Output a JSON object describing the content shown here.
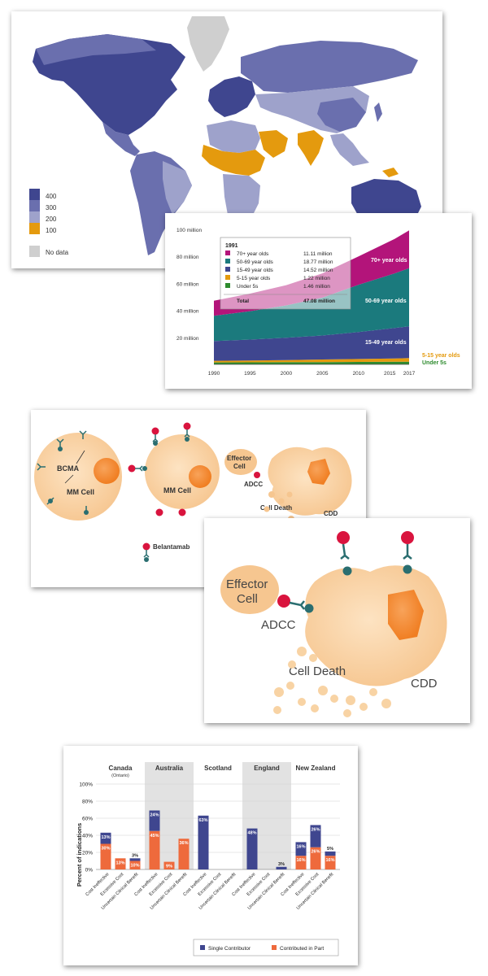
{
  "map": {
    "legend": [
      {
        "label": "400",
        "color": "#3f468f"
      },
      {
        "label": "300",
        "color": "#6a6fae"
      },
      {
        "label": "200",
        "color": "#9ea2cb"
      },
      {
        "label": "100",
        "color": "#e49a0e"
      },
      {
        "label": "No data",
        "color": "#cfcfcf"
      }
    ]
  },
  "area_chart": {
    "type": "area",
    "x": [
      1990,
      1995,
      2000,
      2005,
      2010,
      2015,
      2017
    ],
    "x_tick_labels": [
      "1990",
      "1995",
      "2000",
      "2005",
      "2010",
      "2015",
      "2017"
    ],
    "y_tick_labels": [
      "20 million",
      "40 million",
      "60 million",
      "80 million",
      "100 million"
    ],
    "ylim": [
      0,
      100
    ],
    "series": [
      {
        "name": "Under 5s",
        "color": "#2e8b2e",
        "values": [
          1.46,
          1.5,
          1.6,
          1.7,
          1.8,
          1.9,
          2.0
        ]
      },
      {
        "name": "5-15 year olds",
        "color": "#e49a0e",
        "values": [
          1.22,
          1.4,
          1.6,
          1.9,
          2.2,
          2.5,
          2.7
        ]
      },
      {
        "name": "15-49 year olds",
        "color": "#3f468f",
        "values": [
          14.52,
          15.5,
          16.5,
          17.8,
          20.0,
          22.5,
          23.5
        ]
      },
      {
        "name": "50-69 year olds",
        "color": "#1b7a7d",
        "values": [
          18.77,
          21.0,
          24.0,
          28.0,
          35.0,
          40.5,
          43.0
        ]
      },
      {
        "name": "70+ year olds",
        "color": "#b3147a",
        "values": [
          11.11,
          13.0,
          15.0,
          18.0,
          21.0,
          25.5,
          28.0
        ]
      }
    ],
    "inset": {
      "year": "1991",
      "rows": [
        {
          "label": "70+ year olds",
          "value": "11.11 million",
          "color": "#b3147a"
        },
        {
          "label": "50-69 year olds",
          "value": "18.77 million",
          "color": "#1b7a7d"
        },
        {
          "label": "15-49 year olds",
          "value": "14.52 million",
          "color": "#3f468f"
        },
        {
          "label": "5-15 year olds",
          "value": "1.22 million",
          "color": "#e49a0e"
        },
        {
          "label": "Under 5s",
          "value": "1.46 million",
          "color": "#2e8b2e"
        }
      ],
      "total_label": "Total",
      "total_value": "47.08 million"
    },
    "labels": {
      "s70": "70+ year olds",
      "s50": "50-69 year olds",
      "s15": "15-49 year olds",
      "s5": "5-15 year olds",
      "u5": "Under 5s"
    }
  },
  "cell_diagram": {
    "bcma": "BCMA",
    "mm_cell_1": "MM Cell",
    "mm_cell_2": "MM Cell",
    "effector_line1": "Effector",
    "effector_line2": "Cell",
    "adcc": "ADCC",
    "cell_death": "Cell Death",
    "cdd": "CDD",
    "drug": "Belantamab"
  },
  "zoom_diagram": {
    "effector_line1": "Effector",
    "effector_line2": "Cell",
    "adcc": "ADCC",
    "cell_death": "Cell Death",
    "cdd": "CDD"
  },
  "bar_chart": {
    "type": "bar",
    "ylabel": "Percent of indications",
    "y_ticks": [
      "0%",
      "20%",
      "40%",
      "60%",
      "80%",
      "100%"
    ],
    "ylim": [
      0,
      100
    ],
    "countries": [
      {
        "name": "Canada",
        "sub": "(Ontario)",
        "shaded": false
      },
      {
        "name": "Australia",
        "sub": "",
        "shaded": true
      },
      {
        "name": "Scotland",
        "sub": "",
        "shaded": false
      },
      {
        "name": "England",
        "sub": "",
        "shaded": true
      },
      {
        "name": "New Zealand",
        "sub": "",
        "shaded": false
      }
    ],
    "categories": [
      "Cost Ineffective",
      "Excessive Cost",
      "Uncertain Clinical Benefit"
    ],
    "series": [
      {
        "name": "Single Contributor",
        "color": "#3f468f"
      },
      {
        "name": "Contributed in Part",
        "color": "#ee6a3c"
      }
    ],
    "data": [
      {
        "single": 13,
        "part": 30,
        "single_label": "13%",
        "part_label": "30%"
      },
      {
        "single": 0,
        "part": 13,
        "single_label": "",
        "part_label": "13%"
      },
      {
        "single": 3,
        "part": 10,
        "single_label": "3%",
        "part_label": "10%"
      },
      {
        "single": 24,
        "part": 45,
        "single_label": "24%",
        "part_label": "45%"
      },
      {
        "single": 0,
        "part": 9,
        "single_label": "",
        "part_label": "9%"
      },
      {
        "single": 0,
        "part": 36,
        "single_label": "",
        "part_label": "36%"
      },
      {
        "single": 63,
        "part": 0,
        "single_label": "63%",
        "part_label": ""
      },
      {
        "single": 0,
        "part": 0,
        "single_label": "",
        "part_label": ""
      },
      {
        "single": 0,
        "part": 0,
        "single_label": "",
        "part_label": ""
      },
      {
        "single": 48,
        "part": 0,
        "single_label": "48%",
        "part_label": ""
      },
      {
        "single": 0,
        "part": 0,
        "single_label": "",
        "part_label": ""
      },
      {
        "single": 3,
        "part": 0,
        "single_label": "3%",
        "part_label": ""
      },
      {
        "single": 16,
        "part": 16,
        "single_label": "16%",
        "part_label": "16%"
      },
      {
        "single": 26,
        "part": 26,
        "single_label": "26%",
        "part_label": "26%"
      },
      {
        "single": 5,
        "part": 16,
        "single_label": "5%",
        "part_label": "16%"
      }
    ]
  },
  "chart_data": [
    {
      "type": "area",
      "x": [
        1990,
        1995,
        2000,
        2005,
        2010,
        2015,
        2017
      ],
      "ylim": [
        0,
        100
      ],
      "series": [
        {
          "name": "Under 5s",
          "values": [
            1.46,
            1.5,
            1.6,
            1.7,
            1.8,
            1.9,
            2.0
          ]
        },
        {
          "name": "5-15 year olds",
          "values": [
            1.22,
            1.4,
            1.6,
            1.9,
            2.2,
            2.5,
            2.7
          ]
        },
        {
          "name": "15-49 year olds",
          "values": [
            14.52,
            15.5,
            16.5,
            17.8,
            20.0,
            22.5,
            23.5
          ]
        },
        {
          "name": "50-69 year olds",
          "values": [
            18.77,
            21.0,
            24.0,
            28.0,
            35.0,
            40.5,
            43.0
          ]
        },
        {
          "name": "70+ year olds",
          "values": [
            11.11,
            13.0,
            15.0,
            18.0,
            21.0,
            25.5,
            28.0
          ]
        }
      ]
    },
    {
      "type": "bar",
      "ylabel": "Percent of indications",
      "ylim": [
        0,
        100
      ],
      "categories": [
        "Canada Cost Ineffective",
        "Canada Excessive Cost",
        "Canada Uncertain Clinical Benefit",
        "Australia Cost Ineffective",
        "Australia Excessive Cost",
        "Australia Uncertain Clinical Benefit",
        "Scotland Cost Ineffective",
        "Scotland Excessive Cost",
        "Scotland Uncertain Clinical Benefit",
        "England Cost Ineffective",
        "England Excessive Cost",
        "England Uncertain Clinical Benefit",
        "New Zealand Cost Ineffective",
        "New Zealand Excessive Cost",
        "New Zealand Uncertain Clinical Benefit"
      ],
      "series": [
        {
          "name": "Single Contributor",
          "values": [
            13,
            0,
            3,
            24,
            0,
            0,
            63,
            0,
            0,
            48,
            0,
            3,
            16,
            26,
            5
          ]
        },
        {
          "name": "Contributed in Part",
          "values": [
            30,
            13,
            10,
            45,
            9,
            36,
            0,
            0,
            0,
            0,
            0,
            0,
            16,
            26,
            16
          ]
        }
      ]
    }
  ]
}
